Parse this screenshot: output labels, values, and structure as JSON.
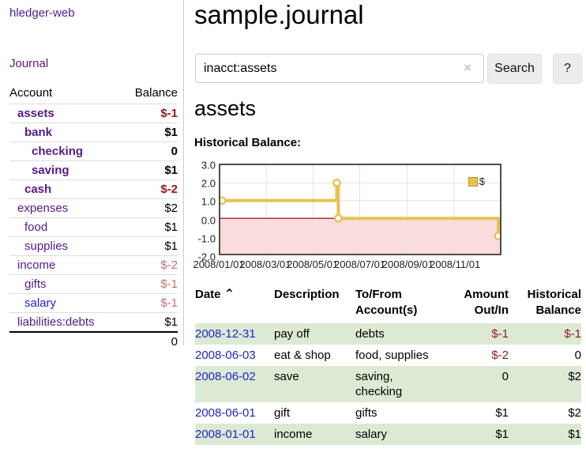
{
  "colors": {
    "purple": "#551a8b",
    "blue": "#2323cc",
    "neg-strong": "#96181b",
    "neg-light": "#c4706f",
    "stripe": "#dcead4",
    "chart-line": "#e8c251",
    "chart-neg-fill": "#fbdcdc",
    "zero-line": "#7d0000",
    "grid": "#e2e2e2",
    "chart-border": "#4d4d4d",
    "clear-x": "#c9c0dd"
  },
  "app": {
    "title": "hledger-web",
    "nav_journal": "Journal"
  },
  "sidebar": {
    "header": {
      "account": "Account",
      "balance": "Balance"
    },
    "accounts": [
      {
        "name": "assets",
        "balance": "$-1",
        "level": 1,
        "bold": true,
        "balance_class": "neg-strong",
        "name_color": "purple"
      },
      {
        "name": "bank",
        "balance": "$1",
        "level": 2,
        "bold": true,
        "balance_class": "",
        "name_color": "purple"
      },
      {
        "name": "checking",
        "balance": "0",
        "level": 3,
        "bold": true,
        "balance_class": "",
        "name_color": "purple"
      },
      {
        "name": "saving",
        "balance": "$1",
        "level": 3,
        "bold": true,
        "balance_class": "",
        "name_color": "purple"
      },
      {
        "name": "cash",
        "balance": "$-2",
        "level": 2,
        "bold": true,
        "balance_class": "neg-strong",
        "name_color": "purple"
      },
      {
        "name": "expenses",
        "balance": "$2",
        "level": 1,
        "bold": false,
        "balance_class": "",
        "name_color": "purple"
      },
      {
        "name": "food",
        "balance": "$1",
        "level": 2,
        "bold": false,
        "balance_class": "",
        "name_color": "purple"
      },
      {
        "name": "supplies",
        "balance": "$1",
        "level": 2,
        "bold": false,
        "balance_class": "",
        "name_color": "purple"
      },
      {
        "name": "income",
        "balance": "$-2",
        "level": 1,
        "bold": false,
        "balance_class": "neg-light",
        "name_color": "purple"
      },
      {
        "name": "gifts",
        "balance": "$-1",
        "level": 2,
        "bold": false,
        "balance_class": "neg-light",
        "name_color": "purple"
      },
      {
        "name": "salary",
        "balance": "$-1",
        "level": 2,
        "bold": false,
        "balance_class": "neg-light",
        "name_color": "blue"
      },
      {
        "name": "liabilities:debts",
        "balance": "$1",
        "level": 1,
        "bold": false,
        "balance_class": "",
        "name_color": "purple"
      }
    ],
    "total": "0"
  },
  "main": {
    "title": "sample.journal",
    "search": {
      "value": "inacct:assets",
      "clear_icon": "×",
      "button_label": "Search",
      "help_label": "?"
    },
    "account_heading": "assets",
    "chart_label": "Historical Balance:"
  },
  "chart_data": {
    "type": "line",
    "step": true,
    "title": "Historical Balance",
    "legend": "$",
    "x": [
      "2008-01-01",
      "2008-06-01",
      "2008-06-03",
      "2008-12-31"
    ],
    "y": [
      1,
      2,
      0,
      -1
    ],
    "xlim": [
      "2008-01-01",
      "2008-12-31"
    ],
    "ylim": [
      -2,
      3
    ],
    "x_tick_labels": [
      "2008/01/01",
      "2008/03/01",
      "2008/05/01",
      "2008/07/01",
      "2008/09/01",
      "2008/11/01"
    ],
    "y_tick_labels": [
      "3.0",
      "2.0",
      "1.0",
      "0.0",
      "-1.0",
      "-2.0"
    ],
    "y_ticks": [
      3,
      2,
      1,
      0,
      -1,
      -2
    ],
    "grid": true,
    "negative_region_shaded": true,
    "legend_position": "top-right"
  },
  "register": {
    "headers": {
      "date": "Date",
      "sort_icon": "⌃",
      "description": "Description",
      "accounts": "To/From Account(s)",
      "amount": "Amount Out/In",
      "balance": "Historical Balance"
    },
    "rows": [
      {
        "date": "2008-12-31",
        "description": "pay off",
        "accounts": "debts",
        "amount": "$-1",
        "amount_neg": true,
        "balance": "$-1",
        "balance_neg": true,
        "stripe": true
      },
      {
        "date": "2008-06-03",
        "description": "eat & shop",
        "accounts": "food, supplies",
        "amount": "$-2",
        "amount_neg": true,
        "balance": "0",
        "balance_neg": false,
        "stripe": false
      },
      {
        "date": "2008-06-02",
        "description": "save",
        "accounts": "saving, checking",
        "amount": "0",
        "amount_neg": false,
        "balance": "$2",
        "balance_neg": false,
        "stripe": true
      },
      {
        "date": "2008-06-01",
        "description": "gift",
        "accounts": "gifts",
        "amount": "$1",
        "amount_neg": false,
        "balance": "$2",
        "balance_neg": false,
        "stripe": false
      },
      {
        "date": "2008-01-01",
        "description": "income",
        "accounts": "salary",
        "amount": "$1",
        "amount_neg": false,
        "balance": "$1",
        "balance_neg": false,
        "stripe": true
      }
    ]
  }
}
